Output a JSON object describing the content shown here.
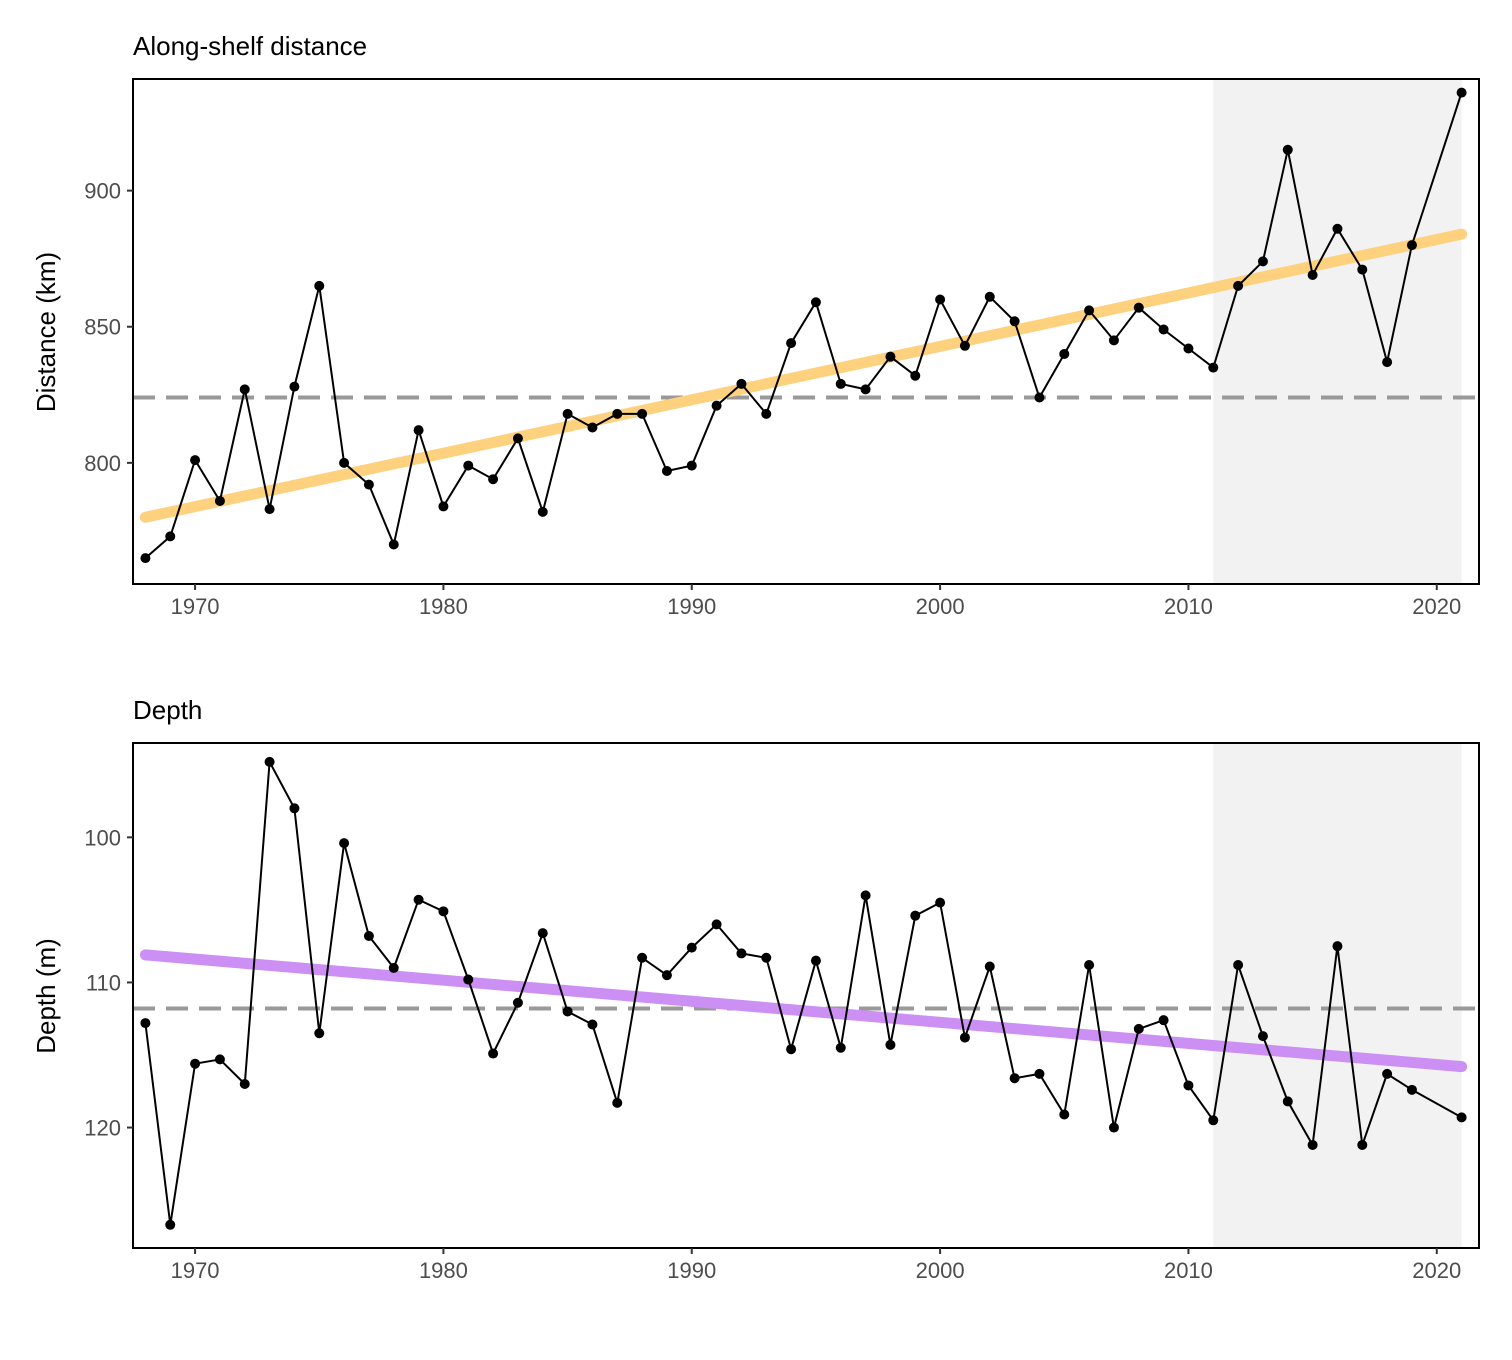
{
  "chart_data": [
    {
      "type": "line",
      "title": "Along-shelf distance",
      "xlabel": "",
      "ylabel": "Distance (km)",
      "xlim": [
        1967.5,
        2021.7
      ],
      "ylim": [
        755.5,
        941
      ],
      "yreversed": false,
      "xticks": [
        1970,
        1980,
        1990,
        2000,
        2010,
        2020
      ],
      "yticks": [
        800,
        850,
        900
      ],
      "shaded_region": {
        "x_start": 2011,
        "x_end": 2021,
        "color": "#f2f2f2"
      },
      "reference_line": {
        "y": 824,
        "style": "dashed",
        "color": "#999999"
      },
      "trend": {
        "x": [
          1968,
          2021
        ],
        "y": [
          780,
          884
        ],
        "color": "#fed17f"
      },
      "series": [
        {
          "color": "#000000",
          "x": [
            1968,
            1969,
            1970,
            1971,
            1972,
            1973,
            1974,
            1975,
            1976,
            1977,
            1978,
            1979,
            1980,
            1981,
            1982,
            1983,
            1984,
            1985,
            1986,
            1987,
            1988,
            1989,
            1990,
            1991,
            1992,
            1993,
            1994,
            1995,
            1996,
            1997,
            1998,
            1999,
            2000,
            2001,
            2002,
            2003,
            2004,
            2005,
            2006,
            2007,
            2008,
            2009,
            2010,
            2011,
            2012,
            2013,
            2014,
            2015,
            2016,
            2017,
            2018,
            2019,
            2021
          ],
          "y": [
            765,
            773,
            801,
            786,
            827,
            783,
            828,
            865,
            800,
            792,
            770,
            812,
            784,
            799,
            794,
            809,
            782,
            818,
            813,
            818,
            818,
            797,
            799,
            821,
            829,
            818,
            844,
            859,
            829,
            827,
            839,
            832,
            860,
            843,
            861,
            852,
            824,
            840,
            856,
            845,
            857,
            849,
            842,
            835,
            865,
            874,
            915,
            869,
            886,
            871,
            837,
            880,
            936
          ]
        }
      ]
    },
    {
      "type": "line",
      "title": "Depth",
      "xlabel": "",
      "ylabel": "Depth (m)",
      "xlim": [
        1967.5,
        2021.7
      ],
      "ylim": [
        93.5,
        128.3
      ],
      "yreversed": true,
      "xticks": [
        1970,
        1980,
        1990,
        2000,
        2010,
        2020
      ],
      "yticks": [
        100,
        110,
        120
      ],
      "shaded_region": {
        "x_start": 2011,
        "x_end": 2021,
        "color": "#f2f2f2"
      },
      "reference_line": {
        "y": 111.8,
        "style": "dashed",
        "color": "#999999"
      },
      "trend": {
        "x": [
          1968,
          2021
        ],
        "y": [
          108.1,
          115.8
        ],
        "color": "#cc8ff4"
      },
      "series": [
        {
          "color": "#000000",
          "x": [
            1968,
            1969,
            1970,
            1971,
            1972,
            1973,
            1974,
            1975,
            1976,
            1977,
            1978,
            1979,
            1980,
            1981,
            1982,
            1983,
            1984,
            1985,
            1986,
            1987,
            1988,
            1989,
            1990,
            1991,
            1992,
            1993,
            1994,
            1995,
            1996,
            1997,
            1998,
            1999,
            2000,
            2001,
            2002,
            2003,
            2004,
            2005,
            2006,
            2007,
            2008,
            2009,
            2010,
            2011,
            2012,
            2013,
            2014,
            2015,
            2016,
            2017,
            2018,
            2019,
            2021
          ],
          "y": [
            112.8,
            126.7,
            115.6,
            115.3,
            117.0,
            94.8,
            98.0,
            113.5,
            100.4,
            106.8,
            109.0,
            104.3,
            105.1,
            109.8,
            114.9,
            111.4,
            106.6,
            112.0,
            112.9,
            118.3,
            108.3,
            109.5,
            107.6,
            106.0,
            108.0,
            108.3,
            114.6,
            108.5,
            114.5,
            104.0,
            114.3,
            105.4,
            104.5,
            113.8,
            108.9,
            116.6,
            116.3,
            119.1,
            108.8,
            120.0,
            113.2,
            112.6,
            117.1,
            119.5,
            108.8,
            113.7,
            118.2,
            121.2,
            107.5,
            121.2,
            116.3,
            117.4,
            119.3
          ]
        }
      ]
    }
  ]
}
